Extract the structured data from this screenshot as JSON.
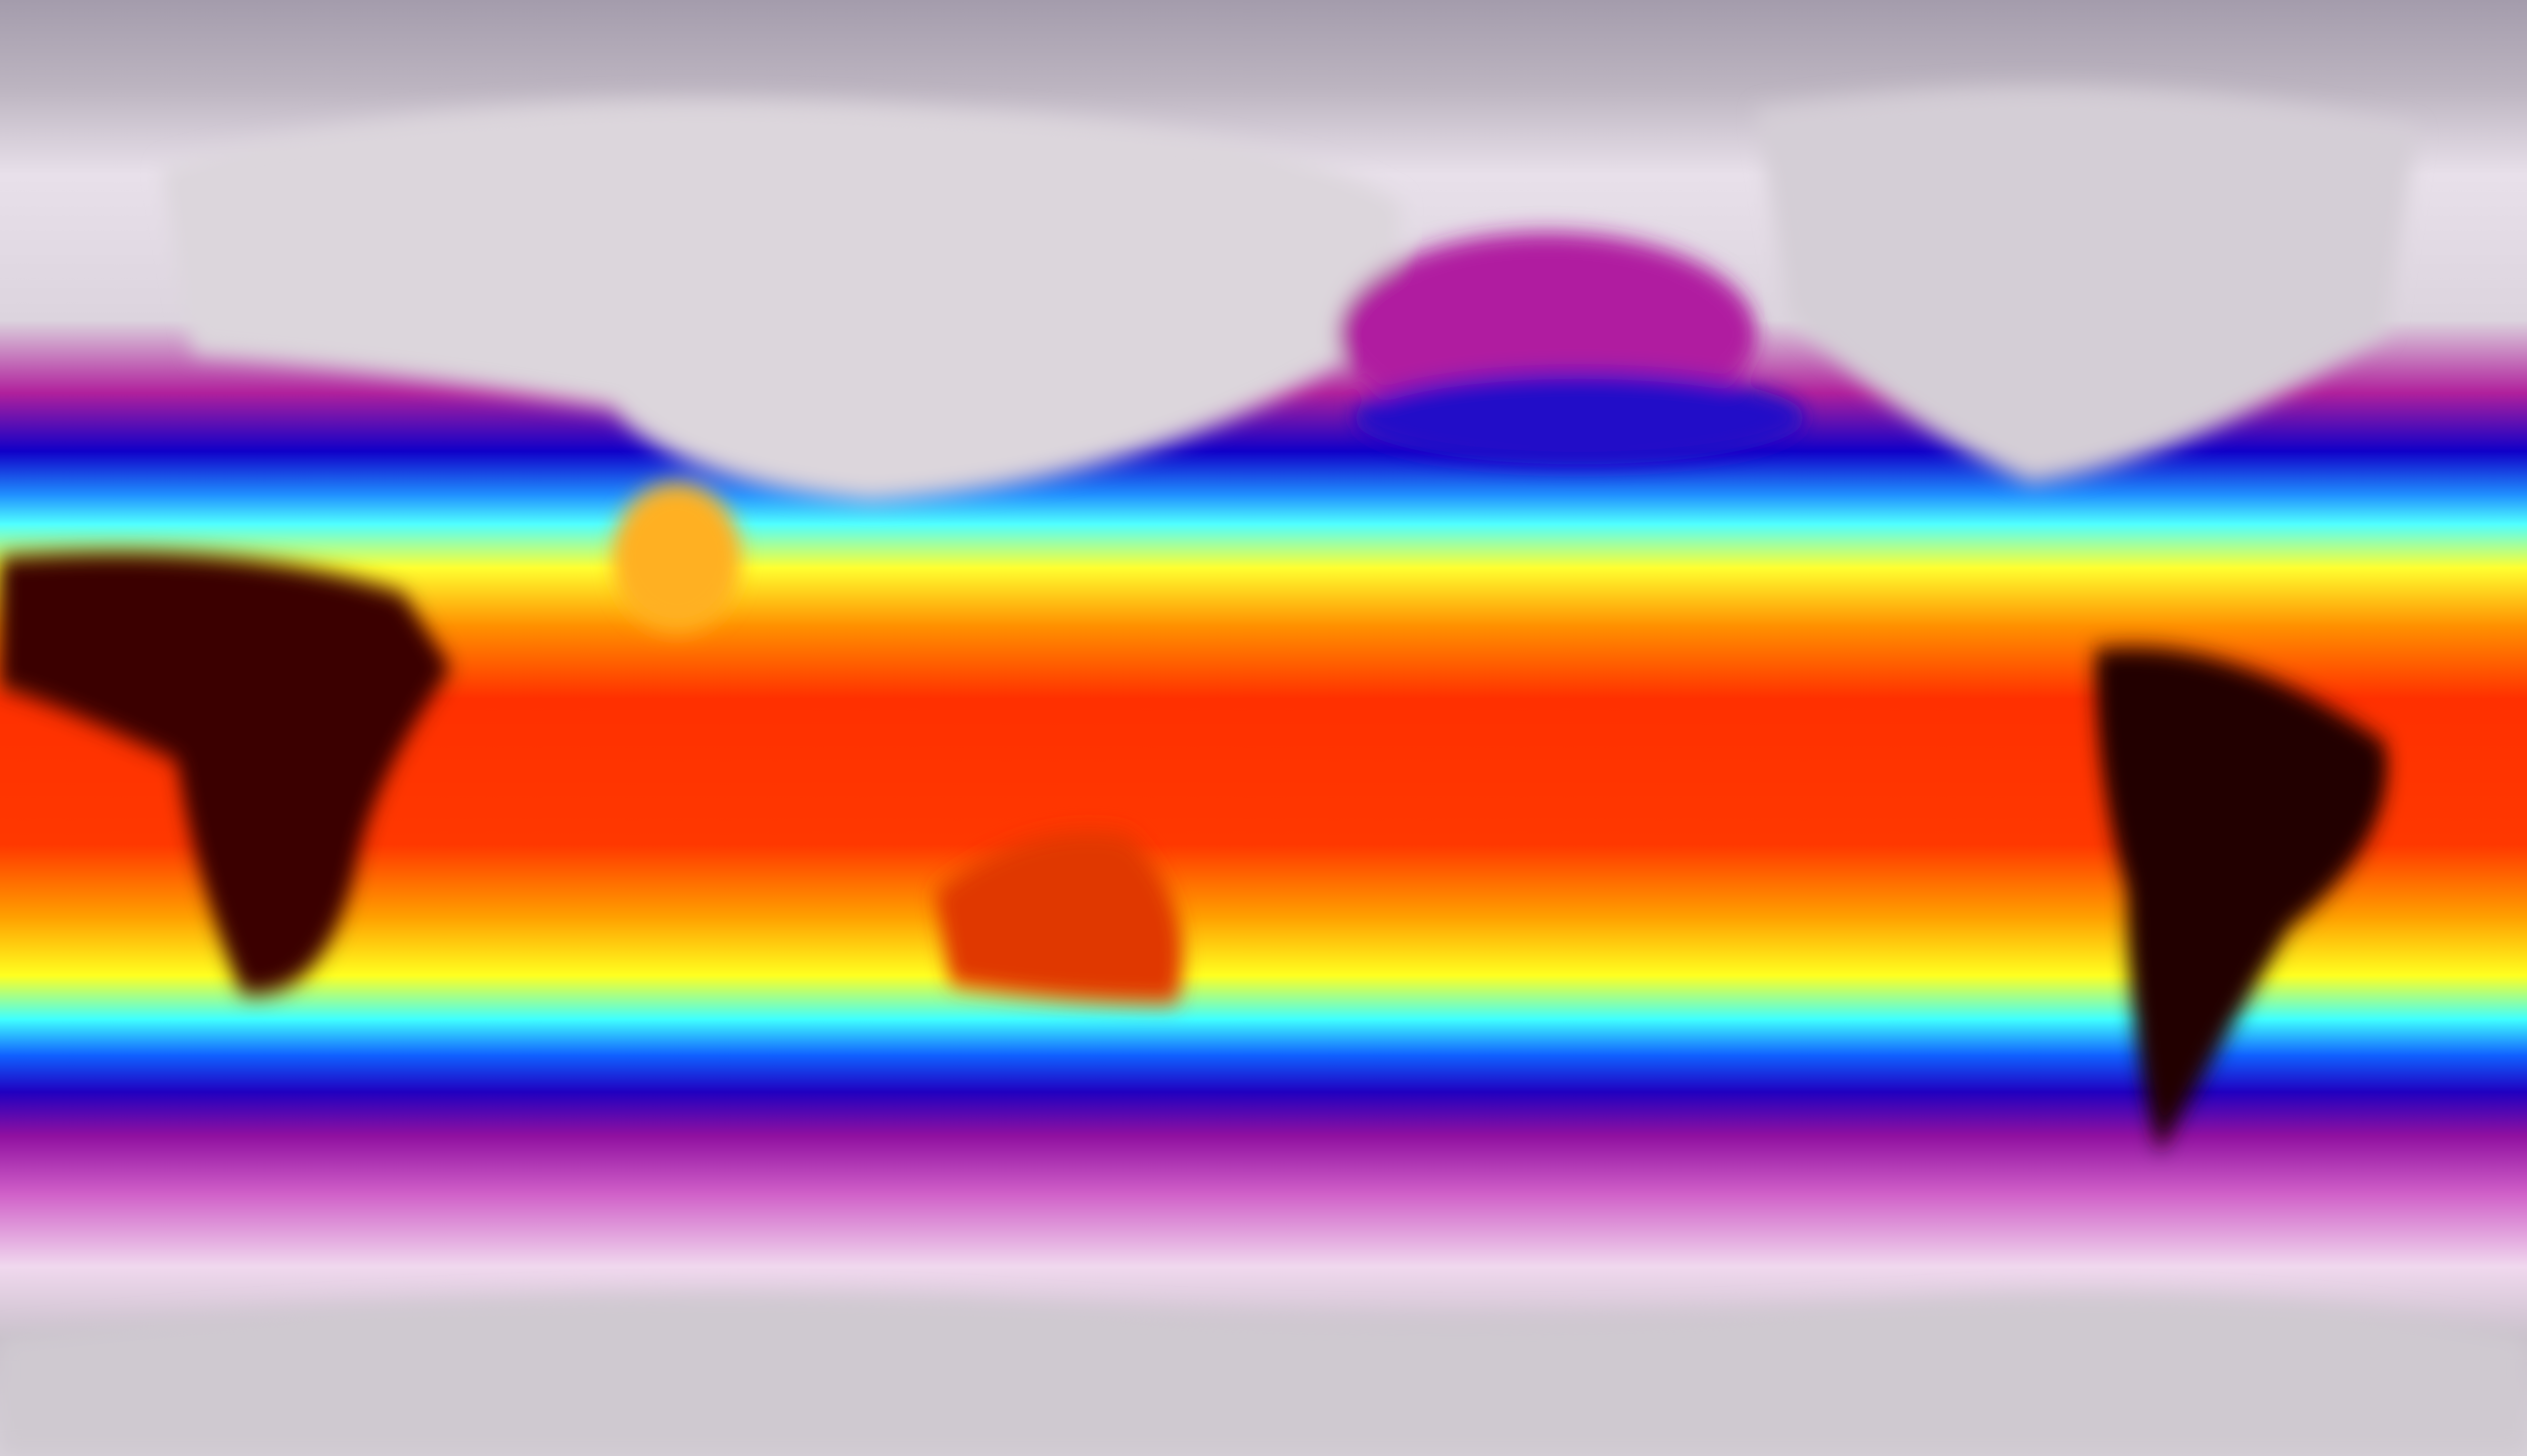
{
  "map": {
    "projection": "equirectangular",
    "colormap": [
      "#a49cac",
      "#f4eef4",
      "#e070d8",
      "#a0109c",
      "#0000c8",
      "#2080ff",
      "#40ffff",
      "#ffff20",
      "#ffa000",
      "#ff2000",
      "#b00000",
      "#200000"
    ],
    "land_colors": {
      "north_continents": "#d8d4d8",
      "africa": "#2a0000",
      "south_america": "#1a0000",
      "australia": "#e03000",
      "antarctica": "#c8c4c8"
    }
  }
}
